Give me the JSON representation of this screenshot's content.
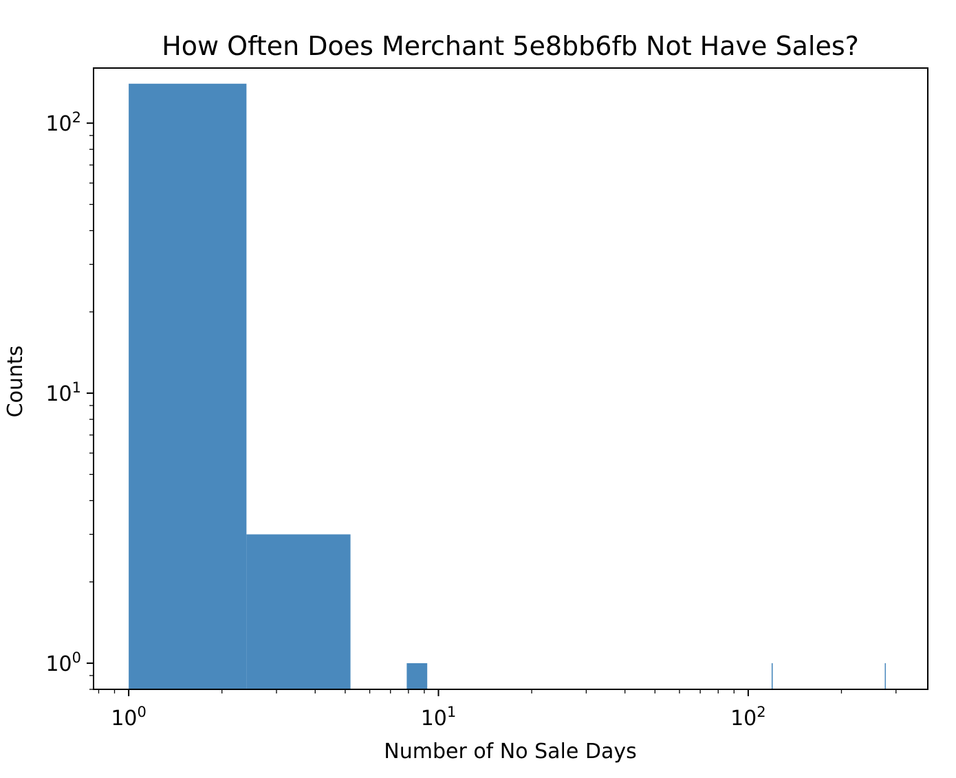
{
  "chart_data": {
    "type": "bar",
    "title": "How Often Does Merchant 5e8bb6fb Not Have Sales?",
    "xlabel": "Number of No Sale Days",
    "ylabel": "Counts",
    "xscale": "log",
    "yscale": "log",
    "xlim": [
      0.77,
      380
    ],
    "ylim": [
      0.8,
      160
    ],
    "color": "#4a89bd",
    "grid": false,
    "legend": "none",
    "bins": [
      {
        "x0": 1.0,
        "x1": 2.4,
        "count": 140
      },
      {
        "x0": 2.4,
        "x1": 5.2,
        "count": 3
      },
      {
        "x0": 7.9,
        "x1": 9.2,
        "count": 1
      },
      {
        "x0": 119,
        "x1": 120,
        "count": 1
      },
      {
        "x0": 276,
        "x1": 277,
        "count": 1
      }
    ],
    "x_major_ticks": [
      {
        "value": 1,
        "base": "10",
        "exp": "0"
      },
      {
        "value": 10,
        "base": "10",
        "exp": "1"
      },
      {
        "value": 100,
        "base": "10",
        "exp": "2"
      }
    ],
    "y_major_ticks": [
      {
        "value": 1,
        "base": "10",
        "exp": "0"
      },
      {
        "value": 10,
        "base": "10",
        "exp": "1"
      },
      {
        "value": 100,
        "base": "10",
        "exp": "2"
      }
    ]
  }
}
